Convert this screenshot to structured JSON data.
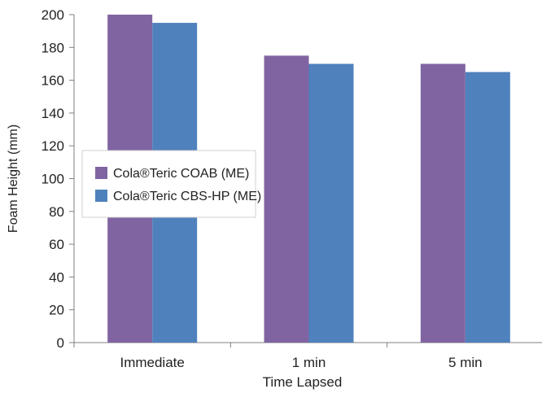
{
  "chart_data": {
    "type": "bar",
    "title": "",
    "xlabel": "Time Lapsed",
    "ylabel": "Foam Height (mm)",
    "categories": [
      "Immediate",
      "1 min",
      "5 min"
    ],
    "series": [
      {
        "name": "Cola®Teric COAB (ME)",
        "values": [
          200,
          175,
          170
        ],
        "color": "#8064a2"
      },
      {
        "name": "Cola®Teric CBS-HP (ME)",
        "values": [
          195,
          170,
          165
        ],
        "color": "#4f81bd"
      }
    ],
    "ylim": [
      0,
      200
    ],
    "yticks": [
      0,
      20,
      40,
      60,
      80,
      100,
      120,
      140,
      160,
      180,
      200
    ],
    "grid": false,
    "legend_position": "left, inside plot"
  }
}
